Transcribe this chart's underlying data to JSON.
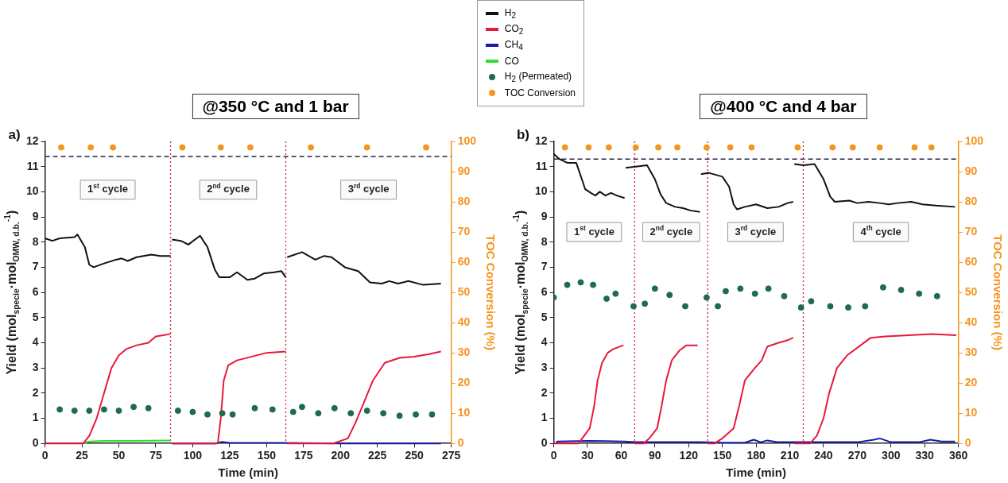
{
  "chart_data": [
    {
      "type": "line",
      "title": "@350 °C and 1 bar",
      "xlabel": "Time (min)",
      "ylabel": "Yield (mol$_{specie}$·mol$_{OMW, d.b.}$$^{-1}$)",
      "y2label": "TOC Conversion (%)",
      "xlim": [
        0,
        275
      ],
      "xticks": [
        0,
        25,
        50,
        75,
        100,
        125,
        150,
        175,
        200,
        225,
        250,
        275
      ],
      "ylim": [
        0,
        12
      ],
      "yticks": [
        0,
        1,
        2,
        3,
        4,
        5,
        6,
        7,
        8,
        9,
        10,
        11,
        12
      ],
      "y2lim": [
        0,
        100
      ],
      "y2ticks": [
        0,
        10,
        20,
        30,
        40,
        50,
        60,
        70,
        80,
        90,
        100
      ],
      "grid": false,
      "legend": "top right",
      "series": [
        {
          "name": "H$_{2}$",
          "type": "line",
          "color": "#111111",
          "x": [
            0,
            5,
            10,
            20,
            22,
            27,
            30,
            33,
            40,
            48,
            52,
            56,
            62,
            72,
            78,
            85,
            85.5,
            86,
            92,
            97,
            105,
            110,
            115,
            118,
            125,
            130,
            137,
            142,
            148,
            155,
            160,
            163,
            163.5,
            164,
            174,
            183,
            189,
            194,
            203,
            212,
            220,
            228,
            233,
            239,
            246,
            256,
            268
          ],
          "values": [
            8.15,
            8.05,
            8.15,
            8.2,
            8.3,
            7.8,
            7.1,
            7.0,
            7.15,
            7.3,
            7.35,
            7.25,
            7.4,
            7.5,
            7.45,
            7.45,
            null,
            8.1,
            8.05,
            7.9,
            8.25,
            7.8,
            6.9,
            6.6,
            6.6,
            6.8,
            6.5,
            6.55,
            6.75,
            6.8,
            6.85,
            6.6,
            null,
            7.4,
            7.6,
            7.3,
            7.45,
            7.4,
            7.0,
            6.85,
            6.4,
            6.35,
            6.45,
            6.35,
            6.45,
            6.3,
            6.35
          ]
        },
        {
          "name": "CO$_{2}$",
          "type": "line",
          "color": "#e8193c",
          "x": [
            0,
            26,
            30,
            35,
            40,
            45,
            50,
            55,
            62,
            70,
            75,
            80,
            85,
            85.5,
            86,
            117,
            119,
            121,
            124,
            130,
            140,
            150,
            163,
            163.5,
            164,
            195,
            205,
            210,
            215,
            222,
            230,
            240,
            250,
            260,
            268
          ],
          "values": [
            0,
            0,
            0.3,
            1.0,
            2.0,
            3.0,
            3.5,
            3.75,
            3.9,
            4.0,
            4.25,
            4.3,
            4.35,
            null,
            0,
            0,
            1.0,
            2.5,
            3.1,
            3.3,
            3.45,
            3.6,
            3.65,
            null,
            0,
            0,
            0.2,
            0.8,
            1.5,
            2.5,
            3.2,
            3.4,
            3.45,
            3.55,
            3.65
          ]
        },
        {
          "name": "CH$_{4}$",
          "type": "line",
          "color": "#1a1aa8",
          "x": [
            86,
            115,
            120,
            125,
            160,
            200,
            268
          ],
          "values": [
            0,
            0,
            0.06,
            0.02,
            0.02,
            0,
            0
          ]
        },
        {
          "name": "CO",
          "type": "line",
          "color": "#33dd33",
          "x": [
            27,
            30,
            40,
            60,
            80,
            85
          ],
          "values": [
            0.02,
            0.08,
            0.1,
            0.1,
            0.12,
            0.12
          ]
        },
        {
          "name": "H$_{2}$ (Permeated)",
          "type": "scatter",
          "marker": "circle",
          "color": "#1e6b4f",
          "x": [
            10,
            20,
            30,
            40,
            50,
            60,
            70,
            90,
            100,
            110,
            120,
            127,
            142,
            154,
            168,
            174,
            185,
            196,
            207,
            218,
            229,
            240,
            251,
            262
          ],
          "values": [
            1.35,
            1.3,
            1.3,
            1.35,
            1.3,
            1.45,
            1.4,
            1.3,
            1.25,
            1.15,
            1.2,
            1.15,
            1.4,
            1.35,
            1.25,
            1.45,
            1.2,
            1.4,
            1.2,
            1.3,
            1.2,
            1.1,
            1.15,
            1.15
          ]
        },
        {
          "name": "TOC Conversion",
          "type": "scatter",
          "marker": "circle",
          "axis": "y2",
          "color": "#f7941d",
          "x": [
            11,
            31,
            46,
            93,
            119,
            139,
            180,
            218,
            258
          ],
          "values": [
            98,
            98,
            98,
            98,
            98,
            98,
            98,
            98,
            98
          ]
        }
      ],
      "ref_lines": [
        {
          "axis": "y",
          "value": 11.4,
          "color": "#222244",
          "line_style": "dashed"
        },
        {
          "axis": "x",
          "value": 85,
          "color": "#d0304a",
          "line_style": "dotted"
        },
        {
          "axis": "x",
          "value": 163,
          "color": "#d0304a",
          "line_style": "dotted"
        }
      ],
      "annotations": [
        "a)",
        "1$^{st}$ cycle",
        "2$^{nd}$ cycle",
        "3$^{rd}$ cycle"
      ]
    },
    {
      "type": "line",
      "title": "@400 °C and 4 bar",
      "xlabel": "Time (min)",
      "ylabel": "Yield (mol$_{specie}$·mol$_{OMW, d.b.}$$^{-1}$)",
      "y2label": "TOC Conversion (%)",
      "xlim": [
        0,
        360
      ],
      "xticks": [
        0,
        30,
        60,
        90,
        120,
        150,
        180,
        210,
        240,
        270,
        300,
        330,
        360
      ],
      "ylim": [
        0,
        12
      ],
      "yticks": [
        0,
        1,
        2,
        3,
        4,
        5,
        6,
        7,
        8,
        9,
        10,
        11,
        12
      ],
      "y2lim": [
        0,
        100
      ],
      "y2ticks": [
        0,
        10,
        20,
        30,
        40,
        50,
        60,
        70,
        80,
        90,
        100
      ],
      "grid": false,
      "series": [
        {
          "type": "line",
          "color": "#111111",
          "x": [
            0,
            5,
            12,
            20,
            25,
            28,
            33,
            37,
            41,
            46,
            51,
            56,
            63,
            63.5,
            64,
            73,
            83,
            90,
            95,
            100,
            108,
            115,
            122,
            130,
            130.5,
            131,
            138,
            150,
            156,
            160,
            163,
            170,
            180,
            190,
            200,
            208,
            213,
            213.5,
            214,
            222,
            232,
            240,
            246,
            250,
            263,
            270,
            280,
            290,
            298,
            306,
            318,
            328,
            340,
            357
          ],
          "values": [
            11.5,
            11.3,
            11.15,
            11.15,
            10.5,
            10.1,
            9.95,
            9.85,
            10.0,
            9.85,
            9.95,
            9.85,
            9.75,
            null,
            10.95,
            11.0,
            11.05,
            10.5,
            9.9,
            9.55,
            9.4,
            9.35,
            9.25,
            9.2,
            null,
            10.7,
            10.75,
            10.6,
            10.2,
            9.5,
            9.3,
            9.4,
            9.5,
            9.35,
            9.4,
            9.55,
            9.6,
            null,
            11.1,
            11.05,
            11.1,
            10.5,
            9.8,
            9.6,
            9.65,
            9.55,
            9.6,
            9.55,
            9.5,
            9.55,
            9.6,
            9.5,
            9.45,
            9.4
          ]
        },
        {
          "type": "line",
          "color": "#e8193c",
          "x": [
            0,
            22,
            27,
            32,
            36,
            39,
            43,
            48,
            53,
            62,
            63.5,
            72,
            80,
            85,
            92,
            96,
            100,
            105,
            112,
            118,
            128,
            130.5,
            137,
            143,
            150,
            160,
            165,
            170,
            179,
            185,
            190,
            200,
            208,
            213,
            213.5,
            214,
            228,
            234,
            240,
            245,
            252,
            261,
            273,
            282,
            295,
            316,
            336,
            358
          ],
          "values": [
            0,
            0,
            0.3,
            0.6,
            1.5,
            2.5,
            3.2,
            3.6,
            3.75,
            3.9,
            null,
            0,
            0,
            0.2,
            0.6,
            1.5,
            2.5,
            3.3,
            3.7,
            3.9,
            3.9,
            null,
            0,
            0,
            0.2,
            0.6,
            1.5,
            2.5,
            3.0,
            3.3,
            3.85,
            4.0,
            4.1,
            4.2,
            null,
            0,
            0,
            0.3,
            1.0,
            2.0,
            3.0,
            3.5,
            3.9,
            4.2,
            4.25,
            4.3,
            4.35,
            4.3
          ]
        },
        {
          "type": "line",
          "color": "#1a1aa8",
          "x": [
            2,
            3,
            30,
            63,
            72,
            130,
            150,
            170,
            178,
            184,
            190,
            200,
            270,
            285,
            290,
            300,
            325,
            335,
            345,
            357
          ],
          "values": [
            0,
            0.08,
            0.1,
            0.08,
            0.05,
            0.05,
            0.03,
            0.03,
            0.15,
            0.05,
            0.12,
            0.05,
            0.05,
            0.15,
            0.2,
            0.05,
            0.05,
            0.15,
            0.08,
            0.08
          ]
        },
        {
          "type": "scatter",
          "marker": "circle",
          "color": "#1e6b4f",
          "x": [
            0,
            12,
            24,
            35,
            47,
            55,
            71,
            81,
            90,
            103,
            117,
            136,
            146,
            153,
            166,
            179,
            191,
            205,
            220,
            229,
            246,
            262,
            277,
            293,
            309,
            325,
            341
          ],
          "values": [
            5.8,
            6.3,
            6.4,
            6.3,
            5.75,
            5.95,
            5.45,
            5.55,
            6.15,
            5.9,
            5.45,
            5.8,
            5.45,
            6.05,
            6.15,
            5.95,
            6.15,
            5.85,
            5.4,
            5.65,
            5.45,
            5.4,
            5.45,
            6.2,
            6.1,
            5.95,
            5.85
          ]
        },
        {
          "type": "scatter",
          "marker": "circle",
          "axis": "y2",
          "color": "#f7941d",
          "x": [
            10,
            31,
            49,
            73,
            93,
            110,
            136,
            157,
            176,
            217,
            248,
            266,
            290,
            321,
            336
          ],
          "values": [
            98,
            98,
            98,
            98,
            98,
            98,
            98,
            98,
            98,
            98,
            98,
            98,
            98,
            98,
            98
          ]
        }
      ],
      "ref_lines": [
        {
          "axis": "y",
          "value": 11.3,
          "color": "#222244",
          "line_style": "dashed"
        },
        {
          "axis": "x",
          "value": 72,
          "color": "#d0304a",
          "line_style": "dotted"
        },
        {
          "axis": "x",
          "value": 137,
          "color": "#d0304a",
          "line_style": "dotted"
        },
        {
          "axis": "x",
          "value": 222,
          "color": "#d0304a",
          "line_style": "dotted"
        }
      ],
      "annotations": [
        "b)",
        "1$^{st}$ cycle",
        "2$^{nd}$ cycle",
        "3$^{rd}$ cycle",
        "4$^{th}$ cycle"
      ]
    }
  ]
}
